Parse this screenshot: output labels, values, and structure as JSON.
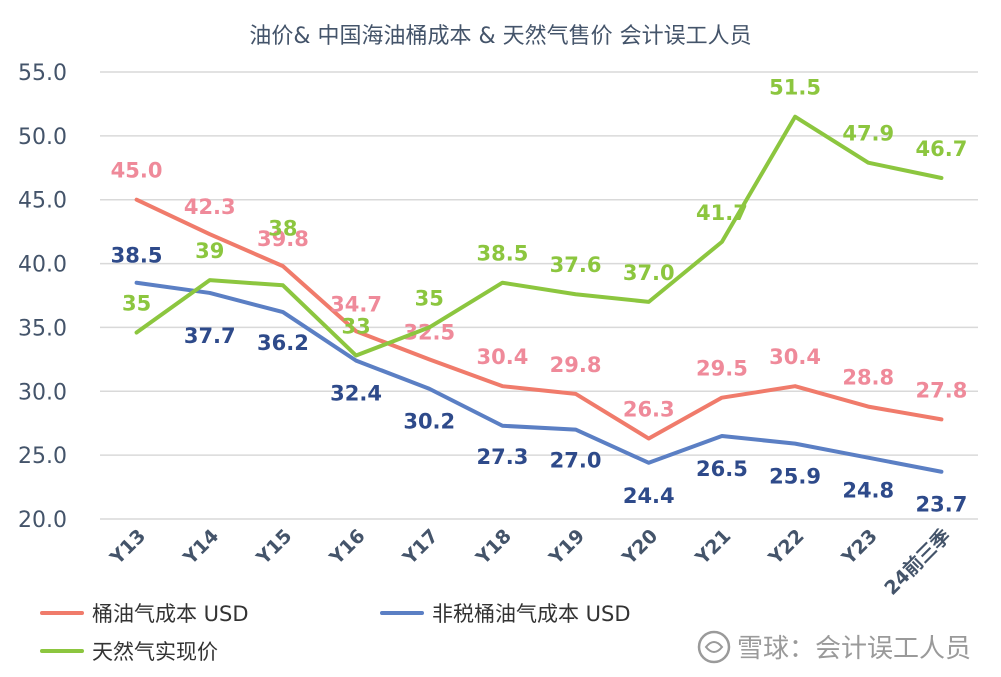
{
  "chart_data": {
    "type": "line",
    "title": "油价& 中国海油桶成本 & 天然气售价 会计误工人员",
    "categories": [
      "Y13",
      "Y14",
      "Y15",
      "Y16",
      "Y17",
      "Y18",
      "Y19",
      "Y20",
      "Y21",
      "Y22",
      "Y23",
      "24前三季"
    ],
    "y_ticks": [
      "55.0",
      "50.0",
      "45.0",
      "40.0",
      "35.0",
      "30.0",
      "25.0",
      "20.0"
    ],
    "ylim": [
      20,
      55
    ],
    "grid": true,
    "legend_position": "bottom-left",
    "series": [
      {
        "name": "桶油气成本 USD",
        "color": "#f07b6b",
        "label_color": "#ef8a9a",
        "values": [
          45.0,
          42.3,
          39.8,
          34.7,
          32.5,
          30.4,
          29.8,
          26.3,
          29.5,
          30.4,
          28.8,
          27.8
        ],
        "labels": [
          "45.0",
          "42.3",
          "39.8",
          "34.7",
          "32.5",
          "30.4",
          "29.8",
          "26.3",
          "29.5",
          "30.4",
          "28.8",
          "27.8"
        ]
      },
      {
        "name": "非税桶油气成本 USD",
        "color": "#5b7fc4",
        "label_color": "#2e4a8a",
        "values": [
          38.5,
          37.7,
          36.2,
          32.4,
          30.2,
          27.3,
          27.0,
          24.4,
          26.5,
          25.9,
          24.8,
          23.7
        ],
        "labels": [
          "38.5",
          "37.7",
          "36.2",
          "32.4",
          "30.2",
          "27.3",
          "27.0",
          "24.4",
          "26.5",
          "25.9",
          "24.8",
          "23.7"
        ]
      },
      {
        "name": "天然气实现价",
        "color": "#8cc63f",
        "label_color": "#8cc63f",
        "values": [
          34.6,
          38.7,
          38.3,
          32.8,
          35.0,
          38.5,
          37.6,
          37.0,
          41.7,
          51.5,
          47.9,
          46.7
        ],
        "labels": [
          "35",
          "39",
          "38",
          "33",
          "35",
          "38.5",
          "37.6",
          "37.0",
          "41.7",
          "51.5",
          "47.9",
          "46.7"
        ]
      }
    ]
  },
  "watermark": {
    "text": "雪球：会计误工人员",
    "icon": "snowball-logo-icon"
  }
}
